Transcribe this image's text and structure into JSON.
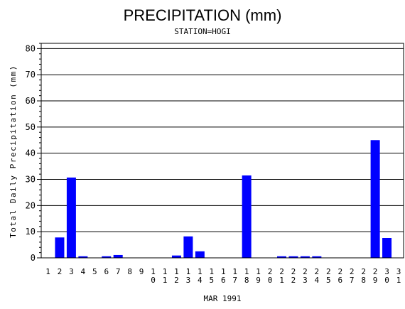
{
  "chart_data": {
    "type": "bar",
    "title": "PRECIPITATION (mm)",
    "subtitle": "STATION=HOGI",
    "xlabel": "MAR 1991",
    "ylabel": "Total Daily Precipitation (mm)",
    "ylim": [
      0,
      82
    ],
    "yticks": [
      0,
      10,
      20,
      30,
      40,
      50,
      60,
      70,
      80
    ],
    "grid": true,
    "bar_color": "#0000ff",
    "categories": [
      "1",
      "2",
      "3",
      "4",
      "5",
      "6",
      "7",
      "8",
      "9",
      "10",
      "11",
      "12",
      "13",
      "14",
      "15",
      "16",
      "17",
      "18",
      "19",
      "20",
      "21",
      "22",
      "23",
      "24",
      "25",
      "26",
      "27",
      "28",
      "29",
      "30",
      "31"
    ],
    "values": [
      0,
      7.8,
      30.7,
      0.6,
      0,
      0.6,
      1.1,
      0,
      0,
      0,
      0,
      0.9,
      8.2,
      2.5,
      0,
      0,
      0,
      31.5,
      0,
      0,
      0.6,
      0.6,
      0.6,
      0.6,
      0,
      0,
      0,
      0,
      45,
      7.6,
      0
    ]
  }
}
